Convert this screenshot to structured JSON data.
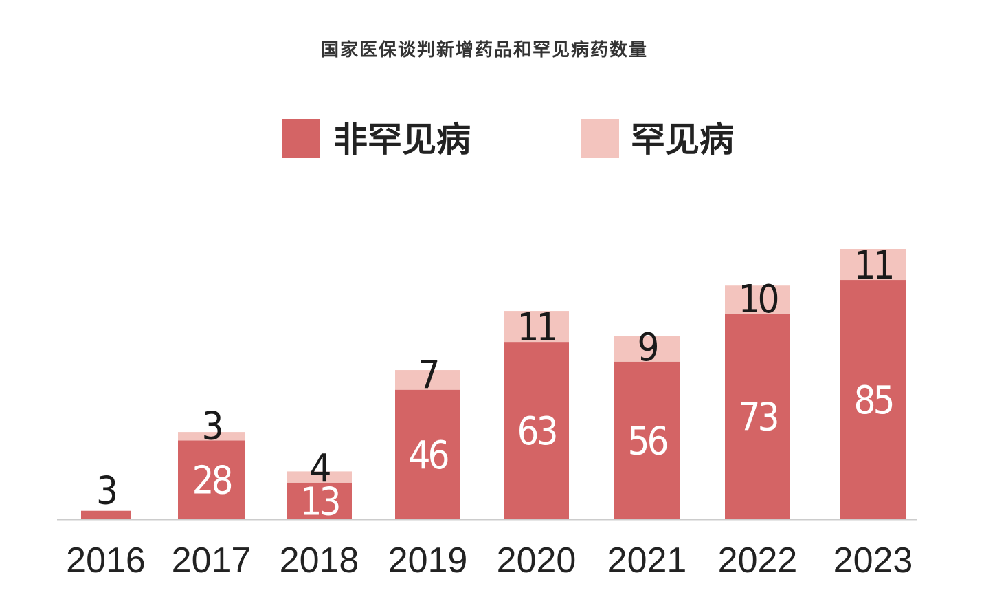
{
  "chart_data": {
    "type": "bar",
    "stacked": true,
    "title": "国家医保谈判新增药品和罕见病药数量",
    "xlabel": "",
    "ylabel": "",
    "categories": [
      "2016",
      "2017",
      "2018",
      "2019",
      "2020",
      "2021",
      "2022",
      "2023"
    ],
    "series": [
      {
        "name": "非罕见病",
        "color": "#d46465",
        "values": [
          3,
          28,
          13,
          46,
          63,
          56,
          73,
          85
        ]
      },
      {
        "name": "罕见病",
        "color": "#f3c4be",
        "values": [
          0,
          3,
          4,
          7,
          11,
          9,
          10,
          11
        ]
      }
    ],
    "legend_position": "top",
    "grid": false,
    "ylim": [
      0,
      96
    ]
  }
}
